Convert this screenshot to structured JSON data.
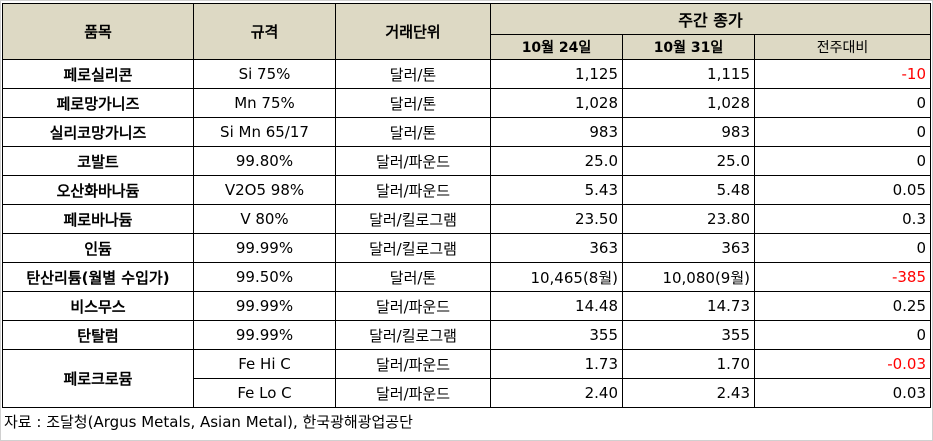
{
  "header": {
    "item": "품목",
    "spec": "규격",
    "unit": "거래단위",
    "weekly_close": "주간 종가",
    "date1": "10월 24일",
    "date2": "10월 31일",
    "change": "전주대비"
  },
  "rows": [
    {
      "item": "페로실리콘",
      "spec": "Si 75%",
      "unit": "달러/톤",
      "v1": "1,125",
      "v2": "1,115",
      "chg": "-10",
      "neg": true
    },
    {
      "item": "페로망가니즈",
      "spec": "Mn 75%",
      "unit": "달러/톤",
      "v1": "1,028",
      "v2": "1,028",
      "chg": "0"
    },
    {
      "item": "실리코망가니즈",
      "spec": "Si Mn 65/17",
      "unit": "달러/톤",
      "v1": "983",
      "v2": "983",
      "chg": "0"
    },
    {
      "item": "코발트",
      "spec": "99.80%",
      "unit": "달러/파운드",
      "v1": "25.0",
      "v2": "25.0",
      "chg": "0"
    },
    {
      "item": "오산화바나듐",
      "spec": "V2O5 98%",
      "unit": "달러/파운드",
      "v1": "5.43",
      "v2": "5.48",
      "chg": "0.05"
    },
    {
      "item": "페로바나듐",
      "spec": "V 80%",
      "unit": "달러/킬로그램",
      "v1": "23.50",
      "v2": "23.80",
      "chg": "0.3"
    },
    {
      "item": "인듐",
      "spec": "99.99%",
      "unit": "달러/킬로그램",
      "v1": "363",
      "v2": "363",
      "chg": "0"
    },
    {
      "item": "탄산리튬(월별 수입가)",
      "spec": "99.50%",
      "unit": "달러/톤",
      "v1": "10,465(8월)",
      "v2": "10,080(9월)",
      "chg": "-385",
      "neg": true
    },
    {
      "item": "비스무스",
      "spec": "99.99%",
      "unit": "달러/파운드",
      "v1": "14.48",
      "v2": "14.73",
      "chg": "0.25"
    },
    {
      "item": "탄탈럼",
      "spec": "99.99%",
      "unit": "달러/킬로그램",
      "v1": "355",
      "v2": "355",
      "chg": "0"
    }
  ],
  "ferrochrome": {
    "item": "페로크로뮴",
    "rows": [
      {
        "spec": "Fe Hi C",
        "unit": "달러/파운드",
        "v1": "1.73",
        "v2": "1.70",
        "chg": "-0.03",
        "neg": true
      },
      {
        "spec": "Fe Lo C",
        "unit": "달러/파운드",
        "v1": "2.40",
        "v2": "2.43",
        "chg": "0.03"
      }
    ]
  },
  "source": "자료 : 조달청(Argus Metals, Asian Metal), 한국광해광업공단",
  "colors": {
    "header_bg": "#DDD9C4",
    "negative": "#FF0000"
  }
}
